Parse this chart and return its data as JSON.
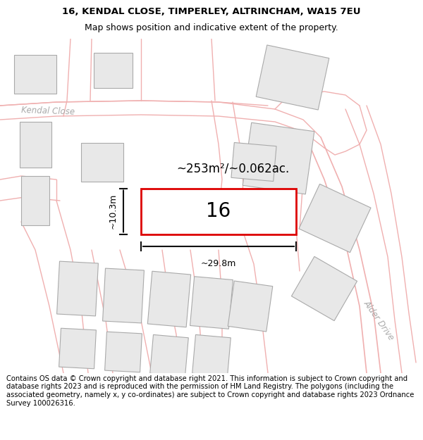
{
  "title_line1": "16, KENDAL CLOSE, TIMPERLEY, ALTRINCHAM, WA15 7EU",
  "title_line2": "Map shows position and indicative extent of the property.",
  "footer_text": "Contains OS data © Crown copyright and database right 2021. This information is subject to Crown copyright and database rights 2023 and is reproduced with the permission of HM Land Registry. The polygons (including the associated geometry, namely x, y co-ordinates) are subject to Crown copyright and database rights 2023 Ordnance Survey 100026316.",
  "area_label": "~253m²/~0.062ac.",
  "number_label": "16",
  "width_label": "~29.8m",
  "height_label": "~10.3m",
  "bg_color": "#ffffff",
  "map_bg_color": "#ffffff",
  "road_line_color": "#f0b0b0",
  "building_color": "#e8e8e8",
  "building_edge_color": "#aaaaaa",
  "plot_outline_color": "#dd0000",
  "plot_fill_color": "#ffffff",
  "dim_line_color": "#111111",
  "street_label_color": "#aaaaaa",
  "title_fontsize": 9.5,
  "footer_fontsize": 7.2,
  "kendal_close_label": "Kendal Close",
  "alder_drive_label": "Alder Drive"
}
